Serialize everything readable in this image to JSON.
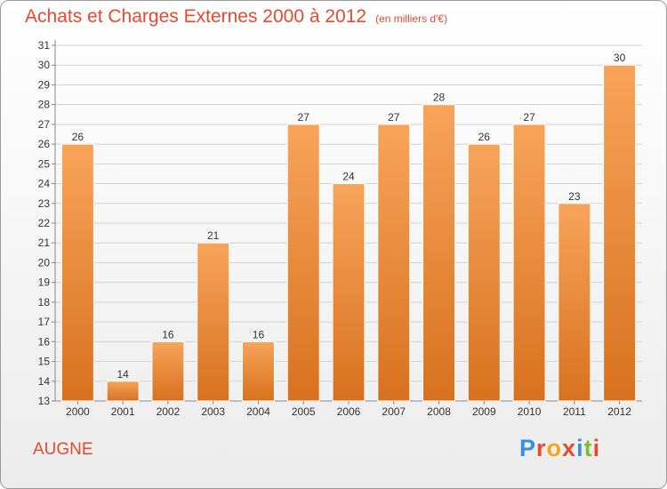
{
  "header": {
    "title": "Achats et Charges Externes 2000 à 2012",
    "subtitle": "(en milliers d'€)"
  },
  "footer": {
    "commune": "AUGNE"
  },
  "logo": {
    "letters": [
      "P",
      "r",
      "o",
      "x",
      "i",
      "t",
      "i"
    ],
    "colors": [
      "#3a8fd9",
      "#e8492e",
      "#f2a81d",
      "#e8492e",
      "#3a8fd9",
      "#7bbf2e",
      "#e8492e"
    ]
  },
  "colors": {
    "bar_top": "#f7a45a",
    "bar_bottom": "#d8711e",
    "title": "#e8492e"
  },
  "chart_data": {
    "type": "bar",
    "categories": [
      "2000",
      "2001",
      "2002",
      "2003",
      "2004",
      "2005",
      "2006",
      "2007",
      "2008",
      "2009",
      "2010",
      "2011",
      "2012"
    ],
    "values": [
      26,
      14,
      16,
      21,
      16,
      27,
      24,
      27,
      28,
      26,
      27,
      23,
      30
    ],
    "ylim": [
      13,
      31
    ],
    "yticks": [
      13,
      14,
      15,
      16,
      17,
      18,
      19,
      20,
      21,
      22,
      23,
      24,
      25,
      26,
      27,
      28,
      29,
      30,
      31
    ],
    "grid": true,
    "data_labels": true
  }
}
